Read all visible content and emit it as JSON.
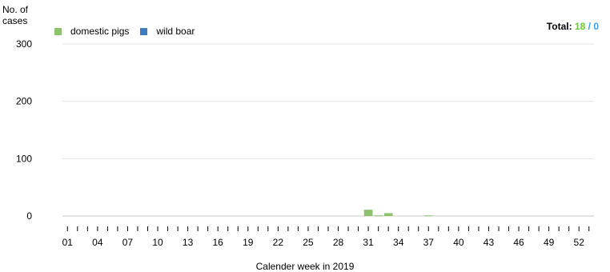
{
  "chart_data": {
    "type": "bar",
    "ylabel": "No. of cases",
    "xlabel": "Calender week in 2019",
    "ylim": [
      0,
      300
    ],
    "yticks": [
      0,
      100,
      200,
      300
    ],
    "x_tick_labels": [
      "01",
      "04",
      "07",
      "10",
      "13",
      "16",
      "19",
      "22",
      "25",
      "28",
      "31",
      "34",
      "37",
      "40",
      "43",
      "46",
      "49",
      "52"
    ],
    "categories": [
      "01",
      "02",
      "03",
      "04",
      "05",
      "06",
      "07",
      "08",
      "09",
      "10",
      "11",
      "12",
      "13",
      "14",
      "15",
      "16",
      "17",
      "18",
      "19",
      "20",
      "21",
      "22",
      "23",
      "24",
      "25",
      "26",
      "27",
      "28",
      "29",
      "30",
      "31",
      "32",
      "33",
      "34",
      "35",
      "36",
      "37",
      "38",
      "39",
      "40",
      "41",
      "42",
      "43",
      "44",
      "45",
      "46",
      "47",
      "48",
      "49",
      "50",
      "51",
      "52",
      "53"
    ],
    "series": [
      {
        "name": "domestic pigs",
        "color": "#8cc269",
        "values": [
          0,
          0,
          0,
          0,
          0,
          0,
          0,
          0,
          0,
          0,
          0,
          0,
          0,
          0,
          0,
          0,
          0,
          0,
          0,
          0,
          0,
          0,
          0,
          0,
          0,
          0,
          0,
          0,
          0,
          0,
          11,
          1,
          5,
          0,
          0,
          0,
          1,
          0,
          0,
          0,
          0,
          0,
          0,
          0,
          0,
          0,
          0,
          0,
          0,
          0,
          0,
          0,
          0
        ]
      },
      {
        "name": "wild boar",
        "color": "#3f7bbf",
        "values": [
          0,
          0,
          0,
          0,
          0,
          0,
          0,
          0,
          0,
          0,
          0,
          0,
          0,
          0,
          0,
          0,
          0,
          0,
          0,
          0,
          0,
          0,
          0,
          0,
          0,
          0,
          0,
          0,
          0,
          0,
          0,
          0,
          0,
          0,
          0,
          0,
          0,
          0,
          0,
          0,
          0,
          0,
          0,
          0,
          0,
          0,
          0,
          0,
          0,
          0,
          0,
          0,
          0
        ]
      }
    ],
    "total": {
      "label": "Total:",
      "domestic": "18",
      "separator": "/",
      "wild": "0",
      "domestic_color": "#5fd320",
      "wild_color": "#3aa0f5"
    },
    "grid": true,
    "legend_position": "top-left"
  }
}
